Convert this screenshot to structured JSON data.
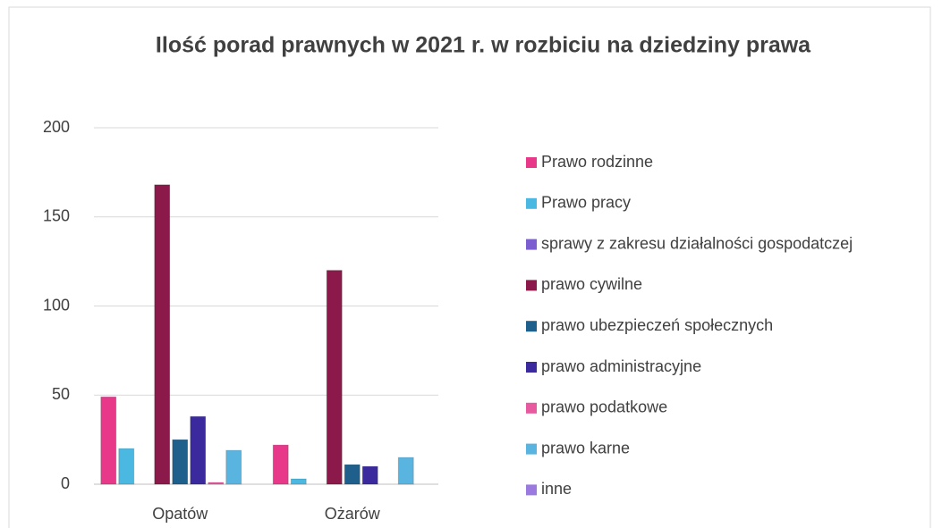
{
  "chart_data": {
    "type": "bar",
    "title": "Ilość porad prawnych w 2021 r. w rozbiciu na dziedziny prawa",
    "categories": [
      "Opatów",
      "Ożarów"
    ],
    "series": [
      {
        "name": "Prawo rodzinne",
        "color": "#e8388a",
        "values": [
          49,
          22
        ]
      },
      {
        "name": "Prawo pracy",
        "color": "#4ab8e0",
        "values": [
          20,
          3
        ]
      },
      {
        "name": "sprawy z zakresu działalności gospodatczej",
        "color": "#7b5fd0",
        "values": [
          0,
          0
        ]
      },
      {
        "name": "prawo cywilne",
        "color": "#8b1a4a",
        "values": [
          168,
          120
        ]
      },
      {
        "name": "prawo ubezpieczeń społecznych",
        "color": "#1f5f8b",
        "values": [
          25,
          11
        ]
      },
      {
        "name": "prawo administracyjne",
        "color": "#3a2a9e",
        "values": [
          38,
          10
        ]
      },
      {
        "name": "prawo podatkowe",
        "color": "#e85aa0",
        "values": [
          1,
          0
        ]
      },
      {
        "name": "prawo karne",
        "color": "#5ab4e0",
        "values": [
          19,
          15
        ]
      },
      {
        "name": "inne",
        "color": "#9b7ae0",
        "values": [
          0,
          0
        ]
      }
    ],
    "ylim": [
      0,
      200
    ],
    "yticks": [
      0,
      50,
      100,
      150,
      200
    ],
    "grid": true,
    "legend": "right"
  }
}
